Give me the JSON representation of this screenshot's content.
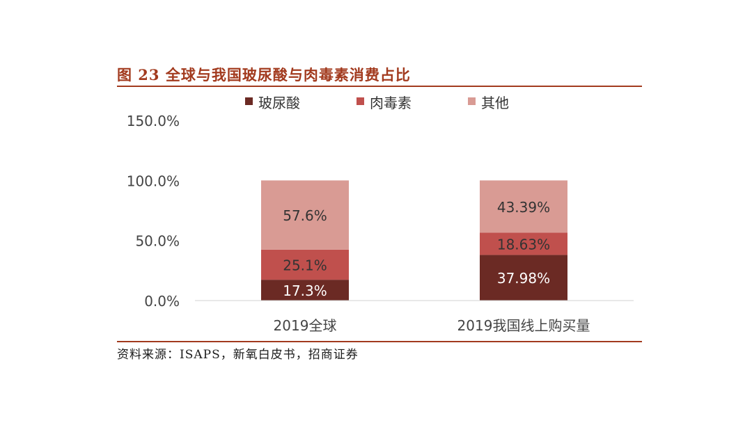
{
  "figure": {
    "title": "图 23  全球与我国玻尿酸与肉毒素消费占比",
    "source": "资料来源：ISAPS，新氧白皮书，招商证券"
  },
  "chart_data": {
    "type": "bar",
    "stacked": true,
    "categories": [
      "2019全球",
      "2019我国线上购买量"
    ],
    "series": [
      {
        "name": "玻尿酸",
        "values": [
          17.3,
          37.98
        ],
        "labels": [
          "17.3%",
          "37.98%"
        ],
        "color": "#6b2a24"
      },
      {
        "name": "肉毒素",
        "values": [
          25.1,
          18.63
        ],
        "labels": [
          "25.1%",
          "18.63%"
        ],
        "color": "#c0504d"
      },
      {
        "name": "其他",
        "values": [
          57.6,
          43.39
        ],
        "labels": [
          "57.6%",
          "43.39%"
        ],
        "color": "#d99b94"
      }
    ],
    "yticks": [
      "0.0%",
      "50.0%",
      "100.0%",
      "150.0%"
    ],
    "ylim": [
      0,
      150
    ],
    "legend_position": "top",
    "grid": false,
    "xlabel": "",
    "ylabel": ""
  }
}
